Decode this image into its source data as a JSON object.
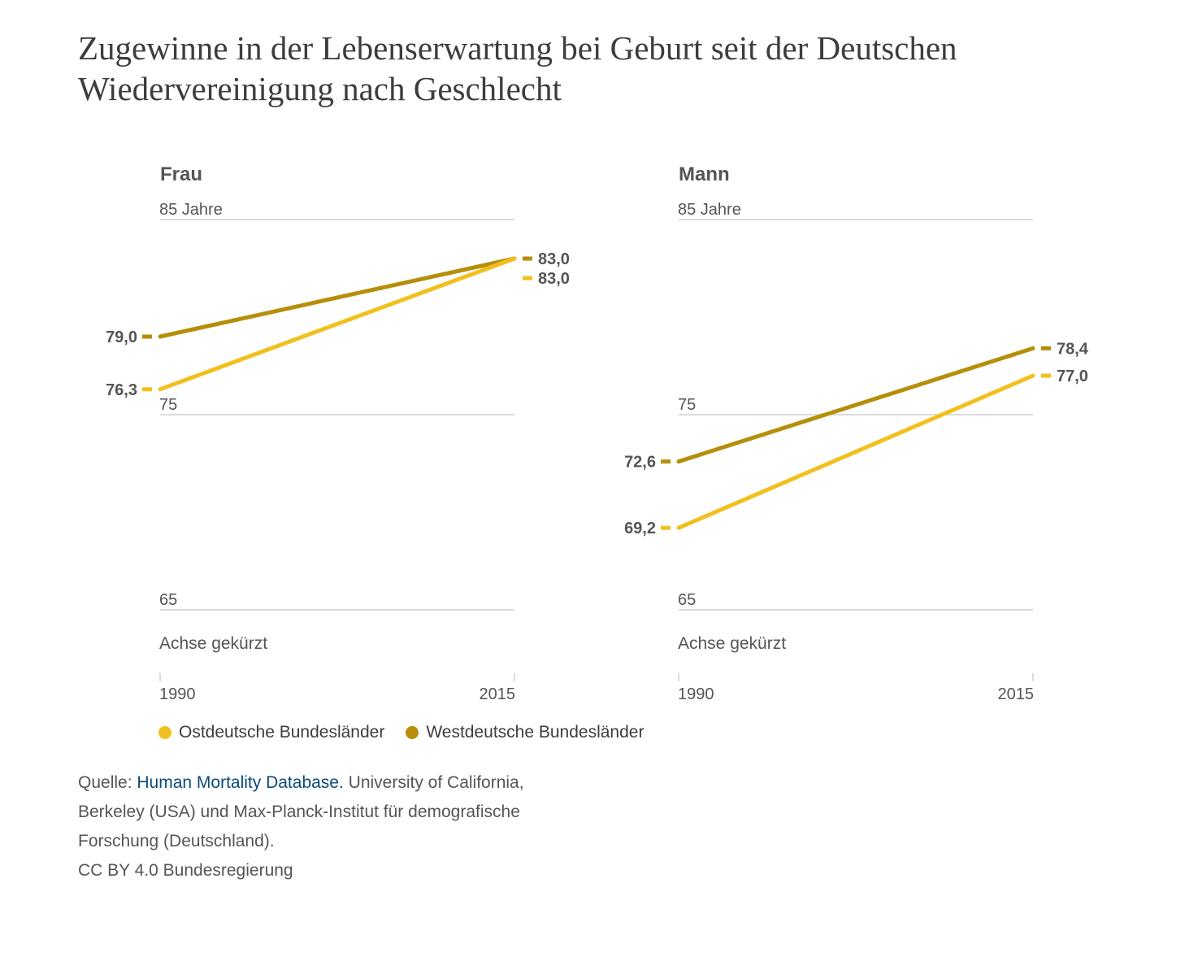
{
  "title": "Zugewinne in der Lebenserwartung bei Geburt seit der Deutschen Wiedervereinigung nach Geschlecht",
  "colors": {
    "ost": "#f2c01e",
    "west": "#b68e0a"
  },
  "legend": [
    {
      "label": "Ostdeutsche Bundesländer",
      "color": "#f2c01e"
    },
    {
      "label": "Westdeutsche Bundesländer",
      "color": "#b68e0a"
    }
  ],
  "source": {
    "prefix": "Quelle: ",
    "link_text": "Human Mortality Database.",
    "rest": " University of California, Berkeley (USA) und Max-Planck-Institut für demografische Forschung (Deutschland).",
    "license": "CC BY 4.0 Bundesregierung"
  },
  "chart_data": [
    {
      "type": "line",
      "title": "Frau",
      "x": [
        "1990",
        "2015"
      ],
      "ylim": [
        65,
        85
      ],
      "yticks": [
        {
          "value": 85,
          "label": "85 Jahre"
        },
        {
          "value": 75,
          "label": "75"
        },
        {
          "value": 65,
          "label": "65"
        }
      ],
      "axis_note": "Achse gekürzt",
      "series": [
        {
          "name": "Westdeutsche Bundesländer",
          "key": "west",
          "values": [
            79.0,
            83.0
          ],
          "labels": [
            "79,0",
            "83,0"
          ]
        },
        {
          "name": "Ostdeutsche Bundesländer",
          "key": "ost",
          "values": [
            76.3,
            83.0
          ],
          "labels": [
            "76,3",
            "83,0"
          ]
        }
      ]
    },
    {
      "type": "line",
      "title": "Mann",
      "x": [
        "1990",
        "2015"
      ],
      "ylim": [
        65,
        85
      ],
      "yticks": [
        {
          "value": 85,
          "label": "85 Jahre"
        },
        {
          "value": 75,
          "label": "75"
        },
        {
          "value": 65,
          "label": "65"
        }
      ],
      "axis_note": "Achse gekürzt",
      "series": [
        {
          "name": "Westdeutsche Bundesländer",
          "key": "west",
          "values": [
            72.6,
            78.4
          ],
          "labels": [
            "72,6",
            "78,4"
          ]
        },
        {
          "name": "Ostdeutsche Bundesländer",
          "key": "ost",
          "values": [
            69.2,
            77.0
          ],
          "labels": [
            "69,2",
            "77,0"
          ]
        }
      ]
    }
  ]
}
